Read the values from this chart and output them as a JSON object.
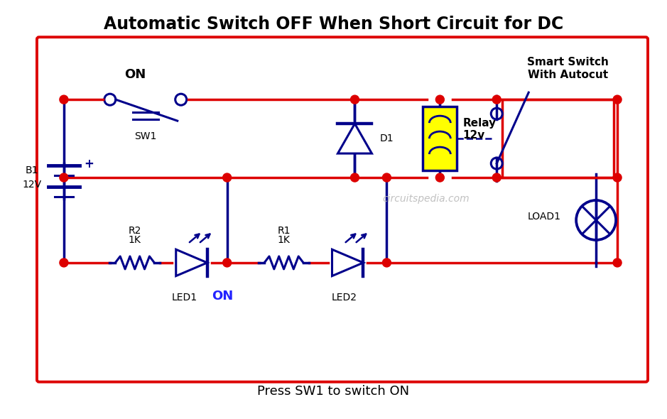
{
  "title": "Automatic Switch OFF When Short Circuit for DC",
  "subtitle": "Press SW1 to switch ON",
  "smart_switch_label": "Smart Switch\nWith Autocut",
  "watermark": "circuitspedia.com",
  "bg_color": "#ffffff",
  "border_color": "#ff0000",
  "wire_color_red": "#dd0000",
  "wire_color_blue": "#00008B",
  "component_color": "#00008B",
  "relay_fill": "#ffff00",
  "relay_border": "#00008B",
  "title_fontsize": 17,
  "node_color": "#dd0000"
}
